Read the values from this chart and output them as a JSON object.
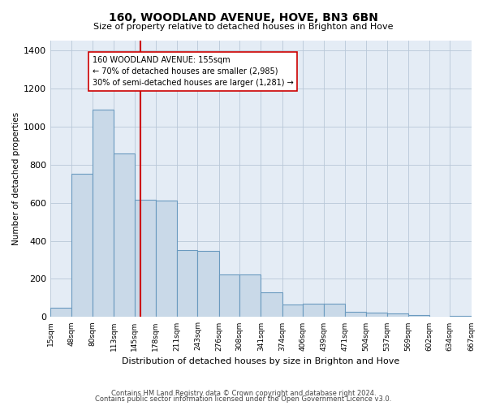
{
  "title": "160, WOODLAND AVENUE, HOVE, BN3 6BN",
  "subtitle": "Size of property relative to detached houses in Brighton and Hove",
  "xlabel": "Distribution of detached houses by size in Brighton and Hove",
  "ylabel": "Number of detached properties",
  "footer_line1": "Contains HM Land Registry data © Crown copyright and database right 2024.",
  "footer_line2": "Contains public sector information licensed under the Open Government Licence v3.0.",
  "annotation_title": "160 WOODLAND AVENUE: 155sqm",
  "annotation_line2": "← 70% of detached houses are smaller (2,985)",
  "annotation_line3": "30% of semi-detached houses are larger (1,281) →",
  "property_size": 155,
  "bin_edges": [
    15,
    48,
    80,
    113,
    145,
    178,
    211,
    243,
    276,
    308,
    341,
    374,
    406,
    439,
    471,
    504,
    537,
    569,
    602,
    634,
    667
  ],
  "bin_labels": [
    "15sqm",
    "48sqm",
    "80sqm",
    "113sqm",
    "145sqm",
    "178sqm",
    "211sqm",
    "243sqm",
    "276sqm",
    "308sqm",
    "341sqm",
    "374sqm",
    "406sqm",
    "439sqm",
    "471sqm",
    "504sqm",
    "537sqm",
    "569sqm",
    "602sqm",
    "634sqm",
    "667sqm"
  ],
  "counts": [
    50,
    750,
    1090,
    860,
    615,
    610,
    350,
    345,
    225,
    225,
    130,
    65,
    70,
    70,
    28,
    25,
    18,
    12,
    0,
    8,
    0
  ],
  "bar_facecolor": "#c9d9e8",
  "bar_edgecolor": "#6a9abf",
  "vline_color": "#cc0000",
  "vline_x": 155,
  "annotation_box_edgecolor": "#cc0000",
  "grid_color": "#b8c8d8",
  "background_color": "#e4ecf5",
  "ylim": [
    0,
    1450
  ],
  "yticks": [
    0,
    200,
    400,
    600,
    800,
    1000,
    1200,
    1400
  ]
}
